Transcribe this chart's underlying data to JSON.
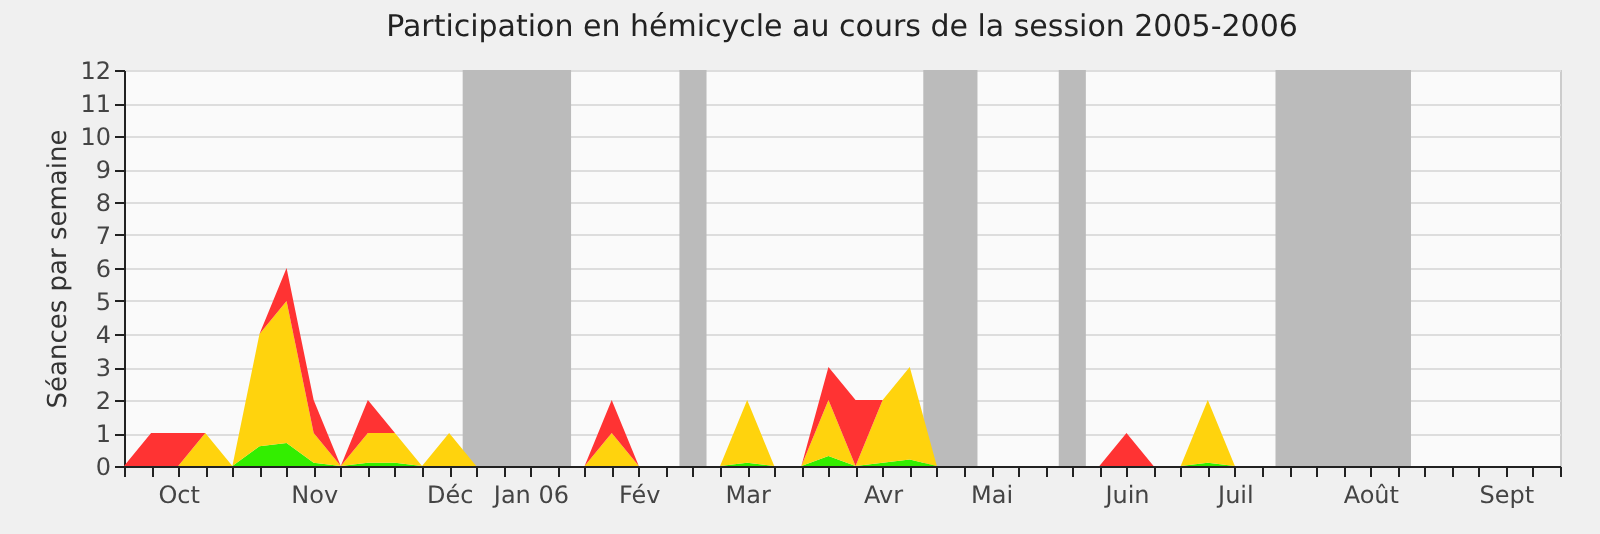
{
  "chart_data": {
    "type": "area",
    "title": "Participation en hémicycle au cours de la session 2005-2006",
    "ylabel": "Séances par semaine",
    "categories": [
      null,
      null,
      "Oct",
      null,
      null,
      null,
      null,
      "Nov",
      null,
      null,
      null,
      null,
      "Déc",
      null,
      null,
      "Jan 06",
      null,
      null,
      null,
      "Fév",
      null,
      null,
      null,
      "Mar",
      null,
      null,
      null,
      null,
      "Avr",
      null,
      null,
      null,
      "Mai",
      null,
      null,
      null,
      null,
      "Juin",
      null,
      null,
      null,
      "Juil",
      null,
      null,
      null,
      null,
      "Août",
      null,
      null,
      null,
      null,
      "Sept",
      null,
      null
    ],
    "stacked": true,
    "series": [
      {
        "color": "#33ee00",
        "values": [
          0,
          0,
          0,
          0,
          0,
          0.6,
          0.7,
          0.1,
          0,
          0.1,
          0.1,
          0,
          0,
          0,
          0,
          0,
          0,
          0,
          0,
          0,
          0,
          0,
          0,
          0.1,
          0,
          0,
          0.3,
          0,
          0.1,
          0.2,
          0,
          0,
          0,
          0,
          0,
          0,
          0,
          0,
          0,
          0,
          0.1,
          0,
          0,
          0,
          0,
          0,
          0,
          0,
          0,
          0,
          0,
          0,
          0,
          0
        ]
      },
      {
        "color": "#ffd30d",
        "values": [
          0,
          0,
          0,
          1,
          0,
          3.4,
          4.3,
          0.9,
          0,
          0.9,
          0.9,
          0,
          1,
          0,
          0,
          0,
          0,
          0,
          1,
          0,
          0,
          0,
          0,
          1.9,
          0,
          0,
          1.7,
          0,
          1.9,
          2.8,
          0,
          0,
          0,
          0,
          0,
          0,
          0,
          0,
          0,
          0,
          1.9,
          0,
          0,
          0,
          0,
          0,
          0,
          0,
          0,
          0,
          0,
          0,
          0,
          0
        ]
      },
      {
        "color": "#ff3333",
        "values": [
          0,
          1,
          1,
          0,
          0,
          0,
          1,
          1,
          0,
          1,
          0,
          0,
          0,
          0,
          0,
          0,
          0,
          0,
          1,
          0,
          0,
          0,
          0,
          0,
          0,
          0,
          1,
          2,
          0,
          0,
          0,
          0,
          0,
          0,
          0,
          0,
          0,
          1,
          0,
          0,
          0,
          0,
          0,
          0,
          0,
          0,
          0,
          0,
          0,
          0,
          0,
          0,
          0,
          0
        ]
      }
    ],
    "ylim": [
      0,
      12
    ],
    "yticks": [
      0,
      1,
      2,
      3,
      4,
      5,
      6,
      7,
      8,
      9,
      10,
      11,
      12
    ],
    "grid": "y"
  }
}
